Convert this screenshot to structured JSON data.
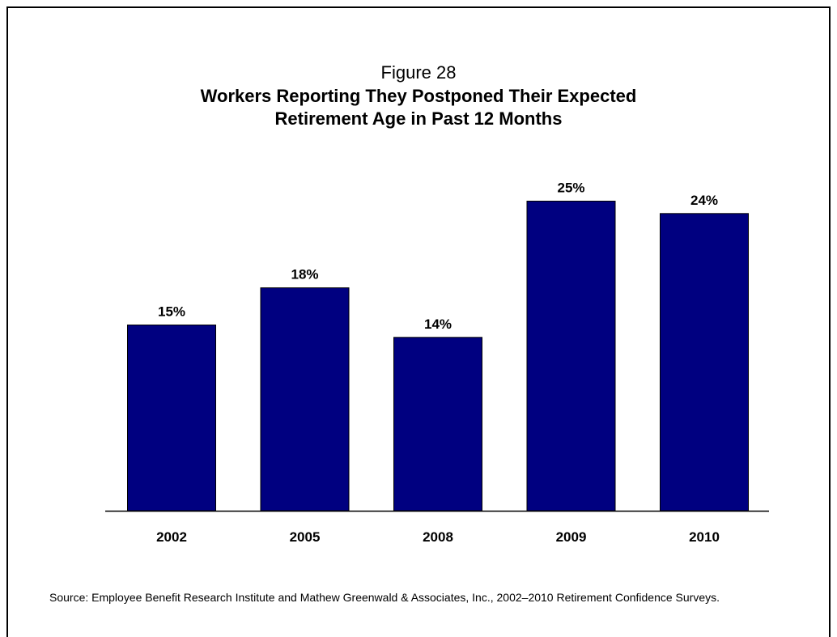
{
  "figure_label": "Figure 28",
  "title_line1": "Workers Reporting They Postponed Their Expected",
  "title_line2": "Retirement Age in Past 12 Months",
  "source_text": "Source:  Employee Benefit Research Institute and Mathew Greenwald & Associates, Inc., 2002–2010 Retirement Confidence Surveys.",
  "colors": {
    "bar": "#000080",
    "bar_border": "#000000",
    "axis": "#000000"
  },
  "chart_data": {
    "type": "bar",
    "title": "Workers Reporting They Postponed Their Expected Retirement Age in Past 12 Months",
    "categories": [
      "2002",
      "2005",
      "2008",
      "2009",
      "2010"
    ],
    "values": [
      15,
      18,
      14,
      25,
      24
    ],
    "value_labels": [
      "15%",
      "18%",
      "14%",
      "25%",
      "24%"
    ],
    "xlabel": "",
    "ylabel": "",
    "ylim": [
      0,
      25
    ],
    "grid": false,
    "legend": "none"
  }
}
